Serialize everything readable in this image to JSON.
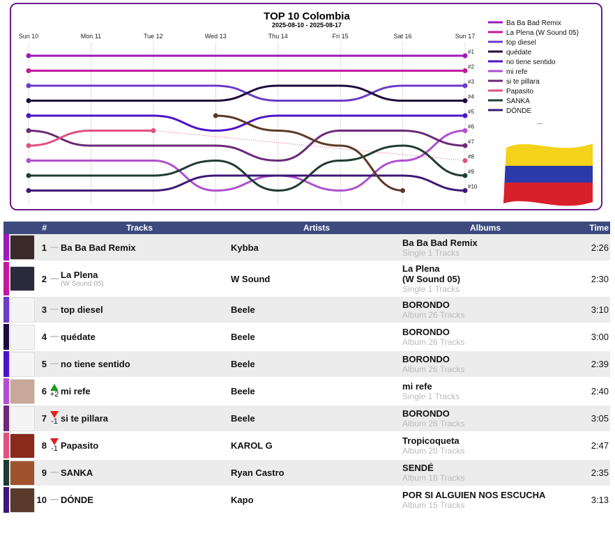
{
  "chart_data": {
    "type": "line",
    "title": "TOP 10 Colombia",
    "subtitle": "2025-08-10 - 2025-08-17",
    "x": [
      "Sun 10",
      "Mon 11",
      "Tue 12",
      "Wed 13",
      "Thu 14",
      "Fri 15",
      "Sat 16",
      "Sun 17"
    ],
    "rank_labels": [
      "#1",
      "#2",
      "#3",
      "#4",
      "#5",
      "#6",
      "#7",
      "#8",
      "#9",
      "#10"
    ],
    "legend_more": "...",
    "ylim": [
      1,
      10
    ],
    "series": [
      {
        "name": "Ba Ba Bad Remix",
        "color": "#9b1ab8",
        "values": [
          1,
          1,
          1,
          1,
          1,
          1,
          1,
          1
        ]
      },
      {
        "name": "La Plena (W Sound 05)",
        "color": "#c4189a",
        "values": [
          2,
          2,
          2,
          2,
          2,
          2,
          2,
          2
        ]
      },
      {
        "name": "top diesel",
        "color": "#6a3cc8",
        "values": [
          3,
          3,
          3,
          3,
          4,
          4,
          3,
          3
        ]
      },
      {
        "name": "quédate",
        "color": "#1e0a3c",
        "values": [
          4,
          4,
          4,
          4,
          3,
          3,
          4,
          4
        ]
      },
      {
        "name": "no tiene sentido",
        "color": "#4a14c8",
        "values": [
          5,
          5,
          5,
          6,
          5,
          5,
          5,
          5
        ]
      },
      {
        "name": "mi refe",
        "color": "#b050d0",
        "values": [
          8,
          8,
          8,
          10,
          9,
          10,
          8,
          6
        ]
      },
      {
        "name": "si te pillara",
        "color": "#6a2a78",
        "values": [
          6,
          7,
          7,
          7,
          8,
          6,
          6,
          7
        ]
      },
      {
        "name": "Papasito",
        "color": "#e05080",
        "values": [
          7,
          6,
          6,
          null,
          null,
          null,
          null,
          8
        ]
      },
      {
        "name": "SANKA",
        "color": "#1e3c32",
        "values": [
          9,
          9,
          9,
          8,
          10,
          8,
          7,
          9
        ]
      },
      {
        "name": "DÓNDE",
        "color": "#3c1878",
        "values": [
          10,
          10,
          10,
          9,
          9,
          9,
          9,
          10
        ]
      },
      {
        "name": "",
        "color": "#5a3a24",
        "values": [
          null,
          null,
          null,
          5,
          6,
          7,
          10,
          null
        ]
      }
    ]
  },
  "table": {
    "headers": {
      "pos": "#",
      "tracks": "Tracks",
      "artists": "Artists",
      "albums": "Albums",
      "time": "Time"
    },
    "rows": [
      {
        "pos": "1",
        "track": "Ba Ba Bad Remix",
        "track_sub": "",
        "artist": "Kybba",
        "album": "Ba Ba Bad Remix",
        "album_info": "Single 1 Tracks",
        "time": "2:26",
        "trend": "same",
        "change": "",
        "color": "#9b1ab8",
        "thumb": "#3a2a2a"
      },
      {
        "pos": "2",
        "track": "La Plena",
        "track_sub": "(W Sound 05)",
        "artist": "W Sound",
        "album": "La Plena\n(W Sound 05)",
        "album_info": "Single 1 Tracks",
        "time": "2:30",
        "trend": "same",
        "change": "",
        "color": "#c4189a",
        "thumb": "#2a2a3a"
      },
      {
        "pos": "3",
        "track": "top diesel",
        "track_sub": "",
        "artist": "Beele",
        "album": "BORONDO",
        "album_info": "Album 26 Tracks",
        "time": "3:10",
        "trend": "same",
        "change": "",
        "color": "#6a3cc8",
        "thumb": "#f4f4f4"
      },
      {
        "pos": "4",
        "track": "quédate",
        "track_sub": "",
        "artist": "Beele",
        "album": "BORONDO",
        "album_info": "Album 26 Tracks",
        "time": "3:00",
        "trend": "same",
        "change": "",
        "color": "#1e0a3c",
        "thumb": "#f4f4f4"
      },
      {
        "pos": "5",
        "track": "no tiene sentido",
        "track_sub": "",
        "artist": "Beele",
        "album": "BORONDO",
        "album_info": "Album 26 Tracks",
        "time": "2:39",
        "trend": "same",
        "change": "",
        "color": "#4a14c8",
        "thumb": "#f4f4f4"
      },
      {
        "pos": "6",
        "track": "mi refe",
        "track_sub": "",
        "artist": "Beele",
        "album": "mi refe",
        "album_info": "Single 1 Tracks",
        "time": "2:40",
        "trend": "up",
        "change": "+2",
        "color": "#b050d0",
        "thumb": "#c8a898"
      },
      {
        "pos": "7",
        "track": "si te pillara",
        "track_sub": "",
        "artist": "Beele",
        "album": "BORONDO",
        "album_info": "Album 26 Tracks",
        "time": "3:05",
        "trend": "down",
        "change": "-1",
        "color": "#6a2a78",
        "thumb": "#f4f4f4"
      },
      {
        "pos": "8",
        "track": "Papasito",
        "track_sub": "",
        "artist": "KAROL G",
        "album": "Tropicoqueta",
        "album_info": "Album 20 Tracks",
        "time": "2:47",
        "trend": "down",
        "change": "-1",
        "color": "#e05080",
        "thumb": "#8a2a1a"
      },
      {
        "pos": "9",
        "track": "SANKA",
        "track_sub": "",
        "artist": "Ryan Castro",
        "album": "SENDÉ",
        "album_info": "Album 18 Tracks",
        "time": "2:35",
        "trend": "same",
        "change": "",
        "color": "#1e3c32",
        "thumb": "#a0522d"
      },
      {
        "pos": "10",
        "track": "DÓNDE",
        "track_sub": "",
        "artist": "Kapo",
        "album": "POR SI ALGUIEN NOS ESCUCHA",
        "album_info": "Album 15 Tracks",
        "time": "3:13",
        "trend": "same",
        "change": "",
        "color": "#3c1878",
        "thumb": "#5a3a2a"
      }
    ]
  }
}
